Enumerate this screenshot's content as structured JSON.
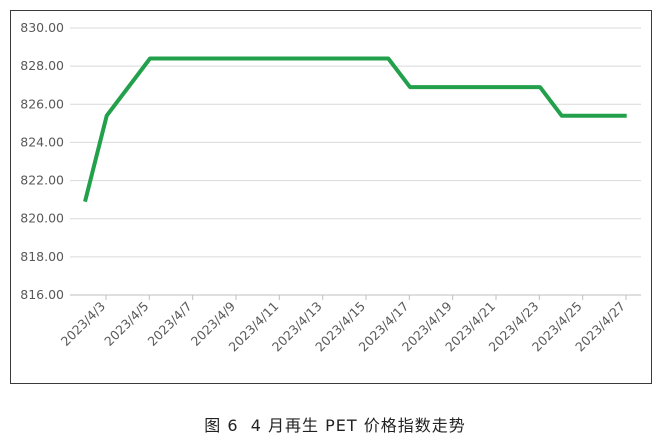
{
  "caption": "图 6  4 月再生 PET 价格指数走势",
  "chart_data": {
    "type": "line",
    "title": "",
    "xlabel": "",
    "ylabel": "",
    "ylim": [
      816,
      830
    ],
    "yticks": [
      "816.00",
      "818.00",
      "820.00",
      "822.00",
      "824.00",
      "826.00",
      "828.00",
      "830.00"
    ],
    "grid": "horizontal",
    "line_color": "#22a04b",
    "x_tick_labels": [
      "2023/4/3",
      "2023/4/5",
      "2023/4/7",
      "2023/4/9",
      "2023/4/11",
      "2023/4/13",
      "2023/4/15",
      "2023/4/17",
      "2023/4/19",
      "2023/4/21",
      "2023/4/23",
      "2023/4/25",
      "2023/4/27"
    ],
    "x": [
      "2023/4/3",
      "2023/4/4",
      "2023/4/6",
      "2023/4/7",
      "2023/4/10",
      "2023/4/11",
      "2023/4/12",
      "2023/4/13",
      "2023/4/14",
      "2023/4/17",
      "2023/4/18",
      "2023/4/19",
      "2023/4/20",
      "2023/4/21",
      "2023/4/24",
      "2023/4/25",
      "2023/4/26",
      "2023/4/27",
      "2023/4/28"
    ],
    "values": [
      820.9,
      825.4,
      828.4,
      828.4,
      828.4,
      828.4,
      828.4,
      828.4,
      828.4,
      828.4,
      826.9,
      826.9,
      826.9,
      826.9,
      826.9,
      825.4,
      825.4,
      825.4,
      825.4
    ]
  }
}
